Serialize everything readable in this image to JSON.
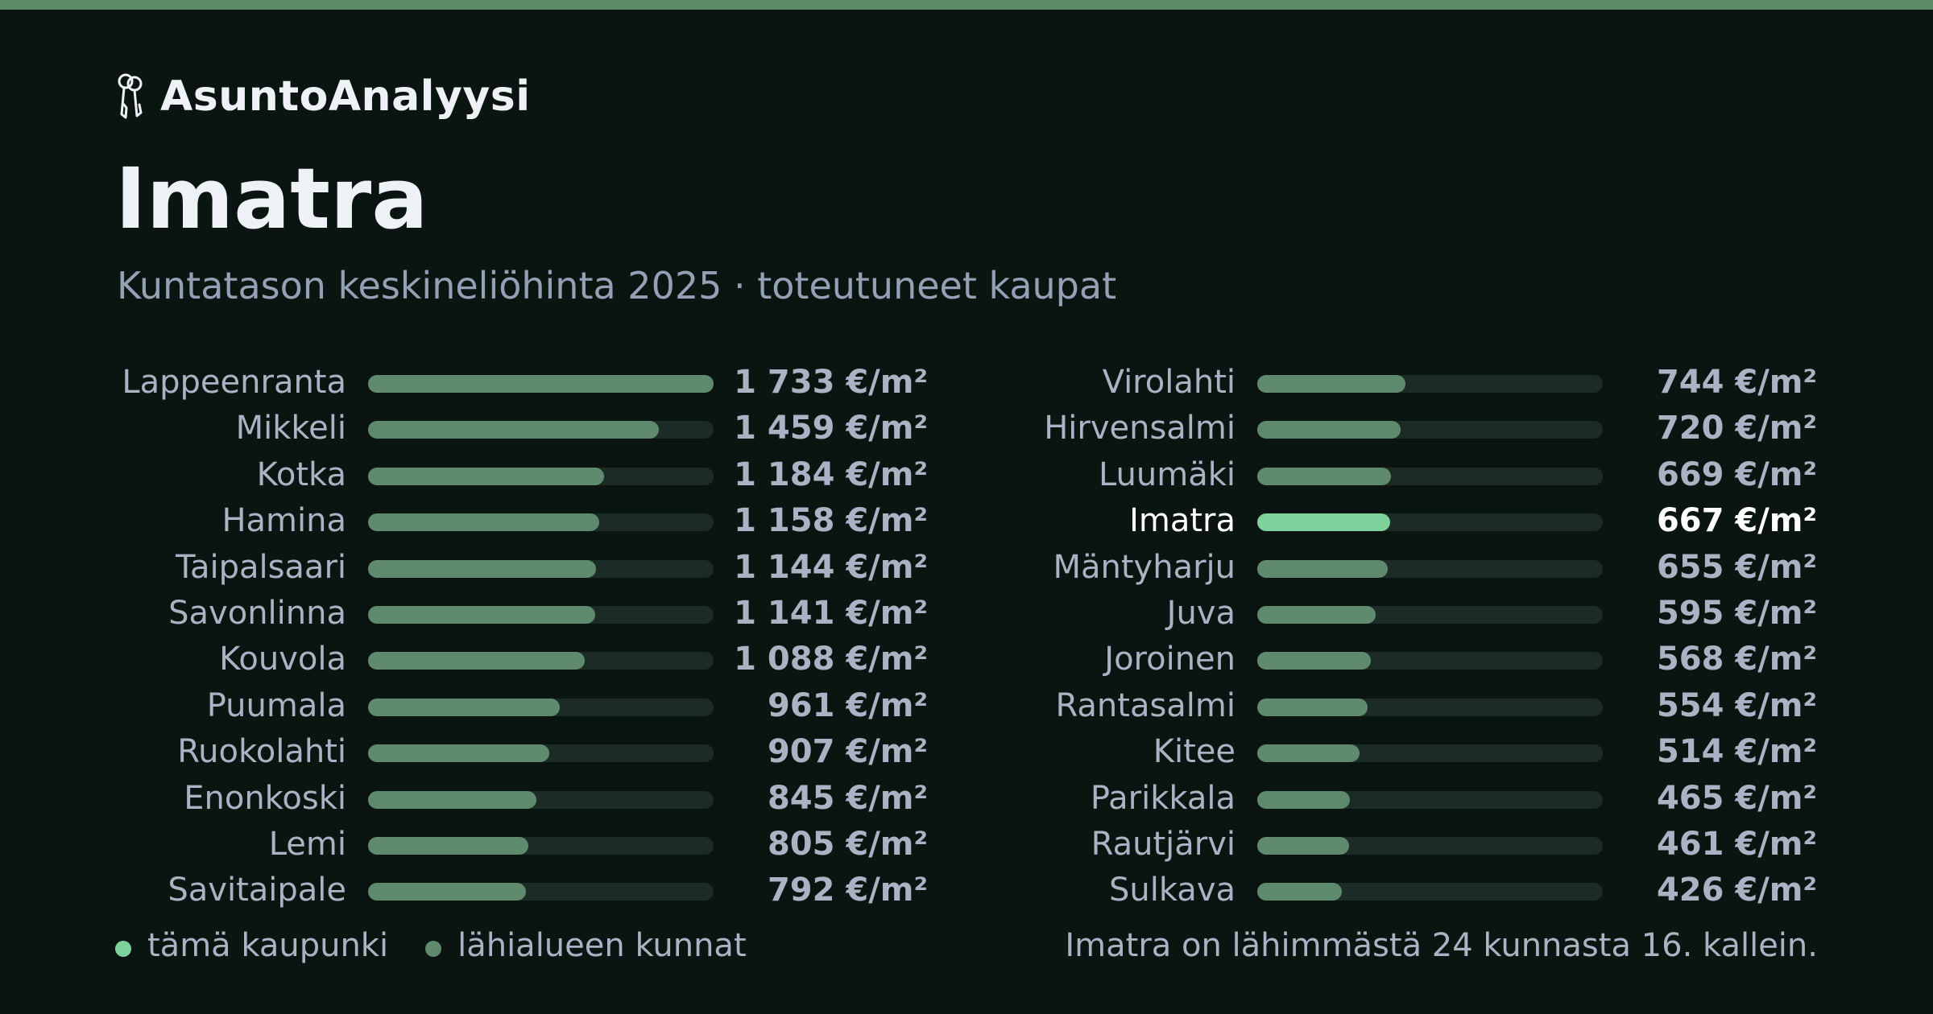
{
  "brand": {
    "name": "AsuntoAnalyysi",
    "icon": "keys-icon"
  },
  "header": {
    "title": "Imatra",
    "subtitle": "Kuntatason keskineliöhinta 2025 · toteutuneet kaupat"
  },
  "colors": {
    "accent": "#5d8b6a",
    "highlight_bar": "#7fd19c",
    "bar": "#5f8a6d",
    "track": "#1b2b26",
    "background": "#0a1512"
  },
  "chart_data": {
    "type": "bar",
    "orientation": "horizontal",
    "unit": "€/m²",
    "highlight": "Imatra",
    "xlim": [
      0,
      1733
    ],
    "categories": [
      "Lappeenranta",
      "Mikkeli",
      "Kotka",
      "Hamina",
      "Taipalsaari",
      "Savonlinna",
      "Kouvola",
      "Puumala",
      "Ruokolahti",
      "Enonkoski",
      "Lemi",
      "Savitaipale",
      "Virolahti",
      "Hirvensalmi",
      "Luumäki",
      "Imatra",
      "Mäntyharju",
      "Juva",
      "Joroinen",
      "Rantasalmi",
      "Kitee",
      "Parikkala",
      "Rautjärvi",
      "Sulkava"
    ],
    "values": [
      1733,
      1459,
      1184,
      1158,
      1144,
      1141,
      1088,
      961,
      907,
      845,
      805,
      792,
      744,
      720,
      669,
      667,
      655,
      595,
      568,
      554,
      514,
      465,
      461,
      426
    ],
    "labels": [
      "1 733 €/m²",
      "1 459 €/m²",
      "1 184 €/m²",
      "1 158 €/m²",
      "1 144 €/m²",
      "1 141 €/m²",
      "1 088 €/m²",
      "961 €/m²",
      "907 €/m²",
      "845 €/m²",
      "805 €/m²",
      "792 €/m²",
      "744 €/m²",
      "720 €/m²",
      "669 €/m²",
      "667 €/m²",
      "655 €/m²",
      "595 €/m²",
      "568 €/m²",
      "554 €/m²",
      "514 €/m²",
      "465 €/m²",
      "461 €/m²",
      "426 €/m²"
    ]
  },
  "legend": {
    "items": [
      {
        "label": "tämä kaupunki",
        "color": "#7fd19c"
      },
      {
        "label": "lähialueen kunnat",
        "color": "#5f8a6d"
      }
    ]
  },
  "note": "Imatra on lähimmästä 24 kunnasta 16. kallein."
}
